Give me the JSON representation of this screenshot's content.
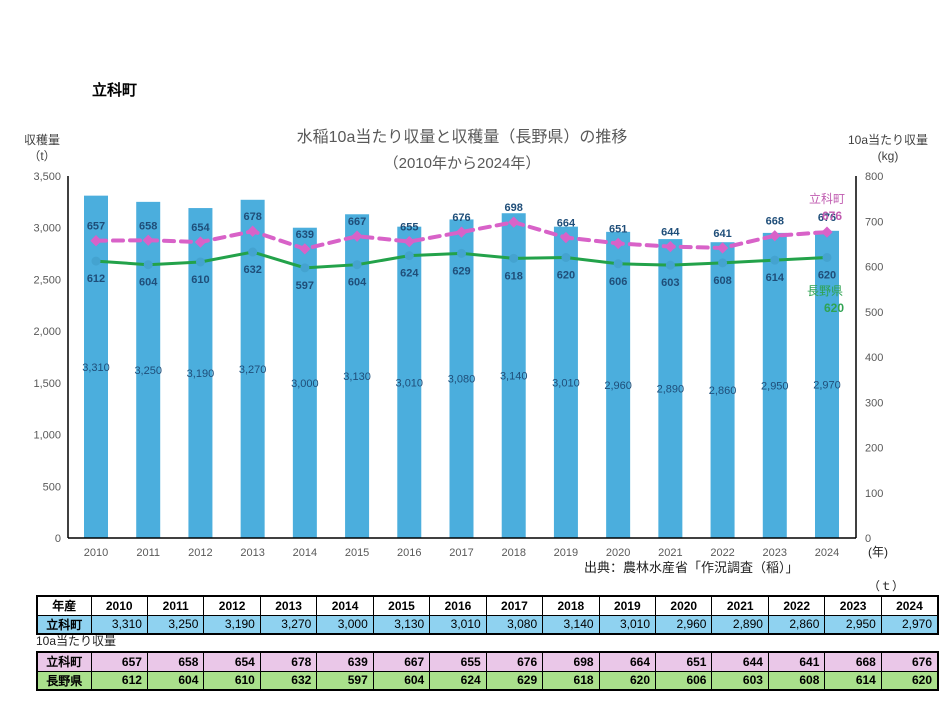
{
  "page": {
    "region_label": "立科町"
  },
  "chart": {
    "title": "水稲10a当たり収量と収穫量（長野県）の推移",
    "subtitle": "（2010年から2024年）",
    "left_axis_title_1": "収穫量",
    "left_axis_title_2": "（t）",
    "right_axis_title_1": "10a当たり収量",
    "right_axis_title_2": "(kg)",
    "x_unit_label": "(年)",
    "source": "出典：農林水産省「作況調査（稲）」",
    "table_unit_label": "（ｔ）",
    "between_tables_note": "10a当たり収量"
  },
  "chart_data": {
    "type": "bar",
    "title": "水稲10a当たり収量と収穫量（長野県）の推移（2010年から2024年）",
    "categories": [
      2010,
      2011,
      2012,
      2013,
      2014,
      2015,
      2016,
      2017,
      2018,
      2019,
      2020,
      2021,
      2022,
      2023,
      2024
    ],
    "series": [
      {
        "name": "立科町 収穫量",
        "type": "bar",
        "axis": "left",
        "unit": "t",
        "color": "#4BAEDD",
        "values": [
          3310,
          3250,
          3190,
          3270,
          3000,
          3130,
          3010,
          3080,
          3140,
          3010,
          2960,
          2890,
          2860,
          2950,
          2970
        ]
      },
      {
        "name": "立科町 10a当たり収量",
        "type": "line",
        "line_style": "dashed",
        "axis": "right",
        "unit": "kg",
        "color": "#D862C8",
        "values": [
          657,
          658,
          654,
          678,
          639,
          667,
          655,
          676,
          698,
          664,
          651,
          644,
          641,
          668,
          676
        ]
      },
      {
        "name": "長野県 10a当たり収量",
        "type": "line",
        "line_style": "solid",
        "axis": "right",
        "unit": "kg",
        "color": "#23A24A",
        "marker_color": "#44A3D0",
        "values": [
          612,
          604,
          610,
          632,
          597,
          604,
          624,
          629,
          618,
          620,
          606,
          603,
          608,
          614,
          620
        ]
      }
    ],
    "left_ylim": [
      0,
      3500
    ],
    "right_ylim": [
      0,
      800
    ],
    "left_ticks": [
      "0",
      "500",
      "1,000",
      "1,500",
      "2,000",
      "2,500",
      "3,000",
      "3,500"
    ],
    "right_ticks": [
      "0",
      "100",
      "200",
      "300",
      "400",
      "500",
      "600",
      "700",
      "800"
    ],
    "grid": false,
    "legend_position": "end-of-line-labels",
    "end_labels": [
      {
        "name": "立科町",
        "value": "676",
        "color": "#C05CB0"
      },
      {
        "name": "長野県",
        "value": "620",
        "color": "#2FA352"
      }
    ],
    "label_color": "#1F4E79"
  },
  "tables": {
    "harvest_table": {
      "corner_header": "年産",
      "year_headers": [
        "2010",
        "2011",
        "2012",
        "2013",
        "2014",
        "2015",
        "2016",
        "2017",
        "2018",
        "2019",
        "2020",
        "2021",
        "2022",
        "2023",
        "2024"
      ],
      "rows": [
        {
          "label": "立科町",
          "bg": "#8FD2F0",
          "values": [
            "3,310",
            "3,250",
            "3,190",
            "3,270",
            "3,000",
            "3,130",
            "3,010",
            "3,080",
            "3,140",
            "3,010",
            "2,960",
            "2,890",
            "2,860",
            "2,950",
            "2,970"
          ]
        }
      ]
    },
    "yield_table": {
      "rows": [
        {
          "label": "立科町",
          "bg": "#EAC7E8",
          "values": [
            "657",
            "658",
            "654",
            "678",
            "639",
            "667",
            "655",
            "676",
            "698",
            "664",
            "651",
            "644",
            "641",
            "668",
            "676"
          ]
        },
        {
          "label": "長野県",
          "bg": "#AAE08C",
          "values": [
            "612",
            "604",
            "610",
            "632",
            "597",
            "604",
            "624",
            "629",
            "618",
            "620",
            "606",
            "603",
            "608",
            "614",
            "620"
          ]
        }
      ]
    }
  }
}
